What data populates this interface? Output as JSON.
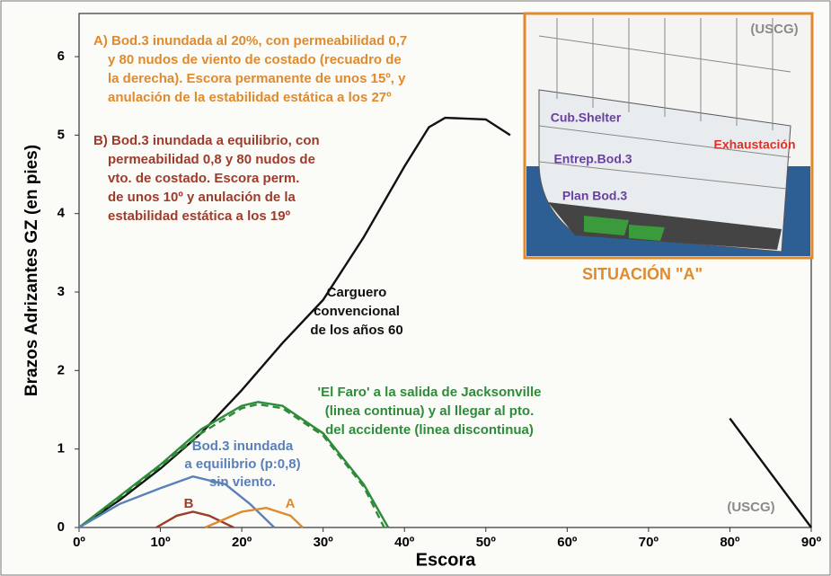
{
  "chart_data": {
    "type": "line",
    "xlabel": "Escora",
    "ylabel": "Brazos Adrizantes GZ (en pies)",
    "xlim": [
      0,
      90
    ],
    "ylim": [
      0,
      6.55
    ],
    "xticks": [
      {
        "value": 0,
        "label": "0º"
      },
      {
        "value": 10,
        "label": "10º"
      },
      {
        "value": 20,
        "label": "20º"
      },
      {
        "value": 30,
        "label": "30º"
      },
      {
        "value": 40,
        "label": "40º"
      },
      {
        "value": 50,
        "label": "50º"
      },
      {
        "value": 60,
        "label": "60º"
      },
      {
        "value": 70,
        "label": "70º"
      },
      {
        "value": 80,
        "label": "80º"
      },
      {
        "value": 90,
        "label": "90º"
      }
    ],
    "yticks": [
      0,
      1,
      2,
      3,
      4,
      5,
      6
    ],
    "series": [
      {
        "color": "#111111",
        "dash": false,
        "x": [
          0,
          5,
          10,
          15,
          20,
          25,
          30,
          35,
          40,
          43,
          45,
          50,
          53,
          68,
          80,
          90
        ],
        "values": [
          0,
          0.35,
          0.75,
          1.2,
          1.75,
          2.35,
          2.9,
          3.7,
          4.6,
          5.1,
          5.22,
          5.2,
          5.0,
          null,
          1.39,
          0
        ]
      },
      {
        "color": "#2e8b3a",
        "dash": false,
        "x": [
          0,
          5,
          10,
          15,
          20,
          22,
          25,
          30,
          35,
          38
        ],
        "values": [
          0,
          0.4,
          0.8,
          1.25,
          1.55,
          1.6,
          1.55,
          1.2,
          0.55,
          0
        ]
      },
      {
        "color": "#2e8b3a",
        "dash": true,
        "x": [
          0,
          5,
          10,
          15,
          20,
          22,
          25,
          30,
          35,
          37.5
        ],
        "values": [
          0,
          0.38,
          0.78,
          1.2,
          1.52,
          1.57,
          1.52,
          1.17,
          0.52,
          0
        ]
      },
      {
        "color": "#5a80b8",
        "dash": false,
        "x": [
          0,
          5,
          10,
          14,
          18,
          21,
          24
        ],
        "values": [
          0,
          0.3,
          0.5,
          0.65,
          0.55,
          0.3,
          0
        ]
      },
      {
        "color": "#9e3b2a",
        "dash": false,
        "x": [
          9.5,
          12,
          14,
          16,
          19
        ],
        "values": [
          0,
          0.15,
          0.2,
          0.15,
          0
        ]
      },
      {
        "color": "#e08a2e",
        "dash": false,
        "x": [
          15.5,
          20,
          23,
          26,
          27.5
        ],
        "values": [
          0,
          0.2,
          0.25,
          0.15,
          0
        ]
      }
    ],
    "annotations": [
      {
        "color": "#e08a2e",
        "lines": [
          "A) Bod.3 inundada al 20%, con permeabilidad 0,7",
          "y 80 nudos de viento de costado (recuadro de",
          "la derecha). Escora permanente de unos 15º, y",
          "anulación de la estabilidad estática a los 27º"
        ]
      },
      {
        "color": "#9e3b2a",
        "lines": [
          "B) Bod.3 inundada a equilibrio, con",
          "permeabilidad 0,8 y 80 nudos de",
          "vto. de costado. Escora perm.",
          "de unos 10º y anulación de la",
          "estabilidad estática a los 19º"
        ]
      },
      {
        "color": "#111111",
        "lines": [
          "Carguero",
          "convencional",
          "de los años 60"
        ]
      },
      {
        "color": "#2e8b3a",
        "lines": [
          "'El Faro' a la salida de Jacksonville",
          "(linea continua) y al llegar al pto.",
          "del accidente (linea discontinua)"
        ]
      },
      {
        "color": "#5a80b8",
        "lines": [
          "Bod.3 inundada",
          "a equilibrio (p:0,8)",
          "sin viento."
        ]
      },
      {
        "color": "#9e3b2a",
        "lines": [
          "B"
        ]
      },
      {
        "color": "#e08a2e",
        "lines": [
          "A"
        ]
      },
      {
        "color": "#8a8a8a",
        "lines": [
          "(USCG)"
        ]
      }
    ],
    "inset": {
      "source": "(USCG)",
      "caption": "SITUACIÓN \"A\"",
      "labels": [
        "Cub.Shelter",
        "Entrep.Bod.3",
        "Plan Bod.3",
        "Exhaustación"
      ]
    }
  }
}
